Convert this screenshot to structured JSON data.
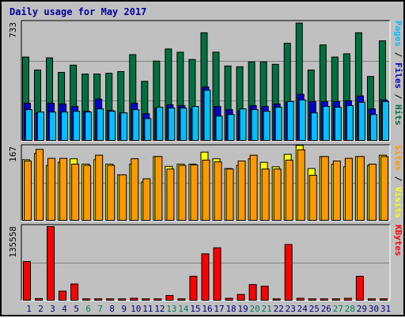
{
  "title": "Daily usage for May 2017",
  "colors": {
    "background": "#c0c0c0",
    "title": "#0000a0",
    "hits": "#007040",
    "files": "#0000d0",
    "pages": "#00c0ff",
    "visits": "#ffff00",
    "sites": "#ff9900",
    "kbytes": "#ff0000",
    "weekend_label": "#00805c",
    "weekday_label": "#000080"
  },
  "chart_data": [
    {
      "type": "bar",
      "panel": "hits-files-pages",
      "ymax_label": "733",
      "ylim": [
        0,
        733
      ],
      "axis_label_parts": [
        {
          "text": "Pages",
          "color": "#00c0ff"
        },
        {
          "text": " / ",
          "color": "#000000"
        },
        {
          "text": "Files",
          "color": "#0000d0"
        },
        {
          "text": " / ",
          "color": "#000000"
        },
        {
          "text": "Hits",
          "color": "#007040"
        }
      ],
      "categories": [
        "1",
        "2",
        "3",
        "4",
        "5",
        "6",
        "7",
        "8",
        "9",
        "10",
        "11",
        "12",
        "13",
        "14",
        "15",
        "16",
        "17",
        "18",
        "19",
        "20",
        "21",
        "22",
        "23",
        "24",
        "25",
        "26",
        "27",
        "28",
        "29",
        "30",
        "31"
      ],
      "series": [
        {
          "name": "Hits",
          "color": "#007040",
          "values": [
            520,
            440,
            515,
            425,
            470,
            415,
            415,
            420,
            430,
            535,
            370,
            495,
            570,
            550,
            505,
            670,
            550,
            465,
            460,
            490,
            490,
            475,
            605,
            730,
            440,
            595,
            520,
            540,
            670,
            400,
            620
          ]
        },
        {
          "name": "Files",
          "color": "#0000d0",
          "values": [
            235,
            175,
            235,
            230,
            215,
            185,
            260,
            190,
            175,
            235,
            170,
            205,
            225,
            220,
            200,
            335,
            215,
            195,
            190,
            220,
            215,
            230,
            240,
            290,
            245,
            245,
            245,
            250,
            280,
            200,
            255
          ]
        },
        {
          "name": "Pages",
          "color": "#00c0ff",
          "values": [
            195,
            180,
            180,
            180,
            185,
            180,
            200,
            185,
            175,
            195,
            140,
            210,
            205,
            205,
            215,
            315,
            155,
            165,
            200,
            195,
            185,
            210,
            245,
            255,
            175,
            215,
            210,
            220,
            240,
            165,
            245
          ]
        }
      ]
    },
    {
      "type": "bar",
      "panel": "visits-sites",
      "ymax_label": "167",
      "ylim": [
        0,
        167
      ],
      "axis_label_parts": [
        {
          "text": "Sites",
          "color": "#ff9900"
        },
        {
          "text": " / ",
          "color": "#000000"
        },
        {
          "text": "Visits",
          "color": "#ffff00"
        }
      ],
      "categories": [
        "1",
        "2",
        "3",
        "4",
        "5",
        "6",
        "7",
        "8",
        "9",
        "10",
        "11",
        "12",
        "13",
        "14",
        "15",
        "16",
        "17",
        "18",
        "19",
        "20",
        "21",
        "22",
        "23",
        "24",
        "25",
        "26",
        "27",
        "28",
        "29",
        "30",
        "31"
      ],
      "series": [
        {
          "name": "Visits",
          "color": "#ffff00",
          "values": [
            138,
            152,
            125,
            132,
            140,
            128,
            138,
            128,
            104,
            128,
            88,
            145,
            123,
            128,
            128,
            155,
            140,
            118,
            125,
            140,
            132,
            122,
            150,
            170,
            118,
            145,
            128,
            122,
            145,
            125,
            148
          ]
        },
        {
          "name": "Sites",
          "color": "#ff9900",
          "values": [
            135,
            161,
            141,
            141,
            128,
            125,
            148,
            125,
            104,
            140,
            95,
            145,
            117,
            125,
            126,
            137,
            133,
            117,
            135,
            148,
            117,
            117,
            137,
            160,
            103,
            145,
            135,
            141,
            145,
            128,
            145
          ]
        }
      ]
    },
    {
      "type": "bar",
      "panel": "kbytes",
      "ymax_label": "135558",
      "ylim": [
        0,
        135558
      ],
      "axis_label_parts": [
        {
          "text": "KBytes",
          "color": "#ff0000"
        }
      ],
      "categories": [
        "1",
        "2",
        "3",
        "4",
        "5",
        "6",
        "7",
        "8",
        "9",
        "10",
        "11",
        "12",
        "13",
        "14",
        "15",
        "16",
        "17",
        "18",
        "19",
        "20",
        "21",
        "22",
        "23",
        "24",
        "25",
        "26",
        "27",
        "28",
        "29",
        "30",
        "31"
      ],
      "series": [
        {
          "name": "KBytes",
          "color": "#ff0000",
          "values": [
            72000,
            4500,
            135558,
            18000,
            31000,
            4000,
            4000,
            4000,
            4000,
            5000,
            4000,
            4000,
            10000,
            4000,
            45000,
            86000,
            97000,
            5000,
            12000,
            30000,
            27000,
            4000,
            103000,
            5000,
            4000,
            4000,
            4000,
            5000,
            45000,
            4000,
            4000
          ]
        }
      ]
    }
  ],
  "x_axis": {
    "labels": [
      {
        "text": "1",
        "weekend": false
      },
      {
        "text": "2",
        "weekend": false
      },
      {
        "text": "3",
        "weekend": false
      },
      {
        "text": "4",
        "weekend": false
      },
      {
        "text": "5",
        "weekend": false
      },
      {
        "text": "6",
        "weekend": true
      },
      {
        "text": "7",
        "weekend": true
      },
      {
        "text": "8",
        "weekend": false
      },
      {
        "text": "9",
        "weekend": false
      },
      {
        "text": "10",
        "weekend": false
      },
      {
        "text": "11",
        "weekend": false
      },
      {
        "text": "12",
        "weekend": false
      },
      {
        "text": "13",
        "weekend": true
      },
      {
        "text": "14",
        "weekend": true
      },
      {
        "text": "15",
        "weekend": false
      },
      {
        "text": "16",
        "weekend": false
      },
      {
        "text": "17",
        "weekend": false
      },
      {
        "text": "18",
        "weekend": false
      },
      {
        "text": "19",
        "weekend": false
      },
      {
        "text": "20",
        "weekend": true
      },
      {
        "text": "21",
        "weekend": true
      },
      {
        "text": "22",
        "weekend": false
      },
      {
        "text": "23",
        "weekend": false
      },
      {
        "text": "24",
        "weekend": false
      },
      {
        "text": "25",
        "weekend": false
      },
      {
        "text": "26",
        "weekend": false
      },
      {
        "text": "27",
        "weekend": true
      },
      {
        "text": "28",
        "weekend": true
      },
      {
        "text": "29",
        "weekend": false
      },
      {
        "text": "30",
        "weekend": false
      },
      {
        "text": "31",
        "weekend": false
      }
    ]
  }
}
